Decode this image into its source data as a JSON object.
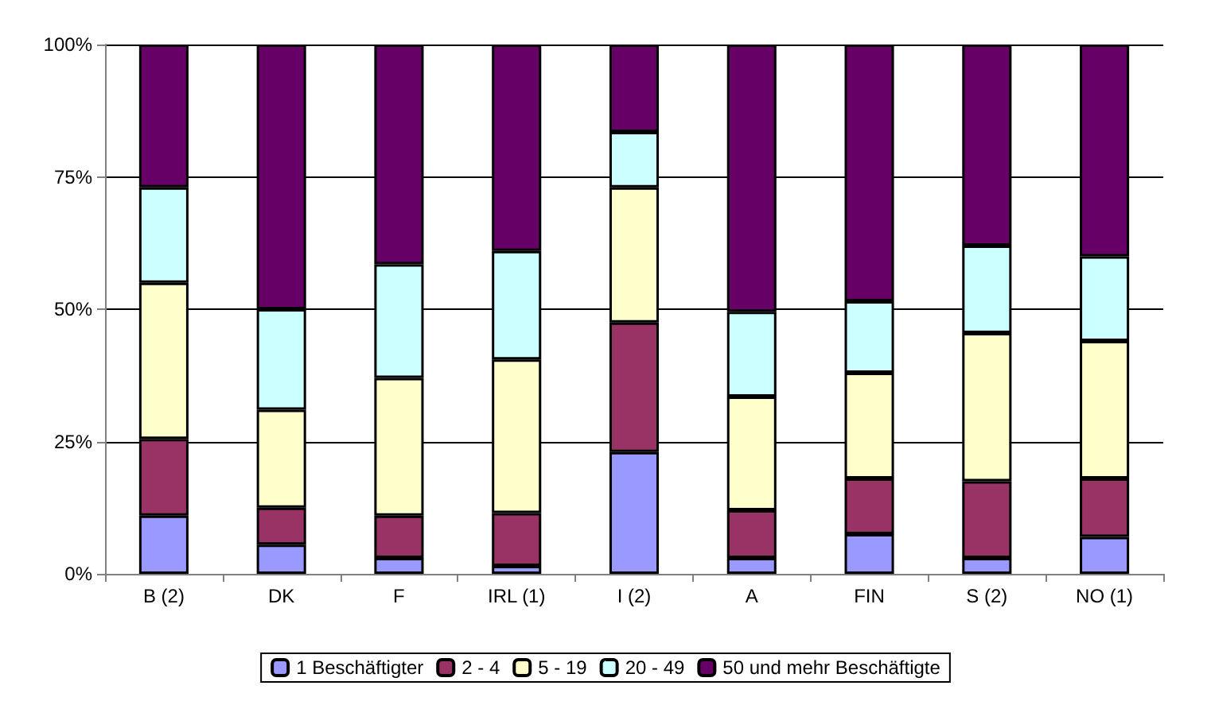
{
  "chart_data": {
    "type": "bar",
    "stacked": true,
    "categories": [
      "B (2)",
      "DK",
      "F",
      "IRL (1)",
      "I (2)",
      "A",
      "FIN",
      "S (2)",
      "NO (1)"
    ],
    "series": [
      {
        "name": "1 Beschäftigter",
        "color": "#9999ff",
        "values": [
          11,
          5.5,
          3,
          1.5,
          23,
          3,
          7.5,
          3,
          7
        ]
      },
      {
        "name": "2 - 4",
        "color": "#993366",
        "values": [
          14.5,
          7,
          8,
          10,
          24.5,
          9,
          10.5,
          14.5,
          11
        ]
      },
      {
        "name": "5 - 19",
        "color": "#ffffcc",
        "values": [
          29.5,
          18.5,
          26,
          29,
          25.5,
          21.5,
          20,
          28,
          26
        ]
      },
      {
        "name": "20 - 49",
        "color": "#ccffff",
        "values": [
          18,
          19,
          21.5,
          20.5,
          10.5,
          16,
          13.5,
          16.5,
          16
        ]
      },
      {
        "name": "50 und mehr Beschäftigte",
        "color": "#660066",
        "values": [
          27,
          50,
          41.5,
          39,
          16.5,
          50.5,
          48.5,
          38,
          40
        ]
      }
    ],
    "ylim": [
      0,
      100
    ],
    "yticks": [
      {
        "value": 0,
        "label": "0%"
      },
      {
        "value": 25,
        "label": "25%"
      },
      {
        "value": 50,
        "label": "50%"
      },
      {
        "value": 75,
        "label": "75%"
      },
      {
        "value": 100,
        "label": "100%"
      }
    ],
    "grid": "y",
    "legend": "bottom"
  }
}
